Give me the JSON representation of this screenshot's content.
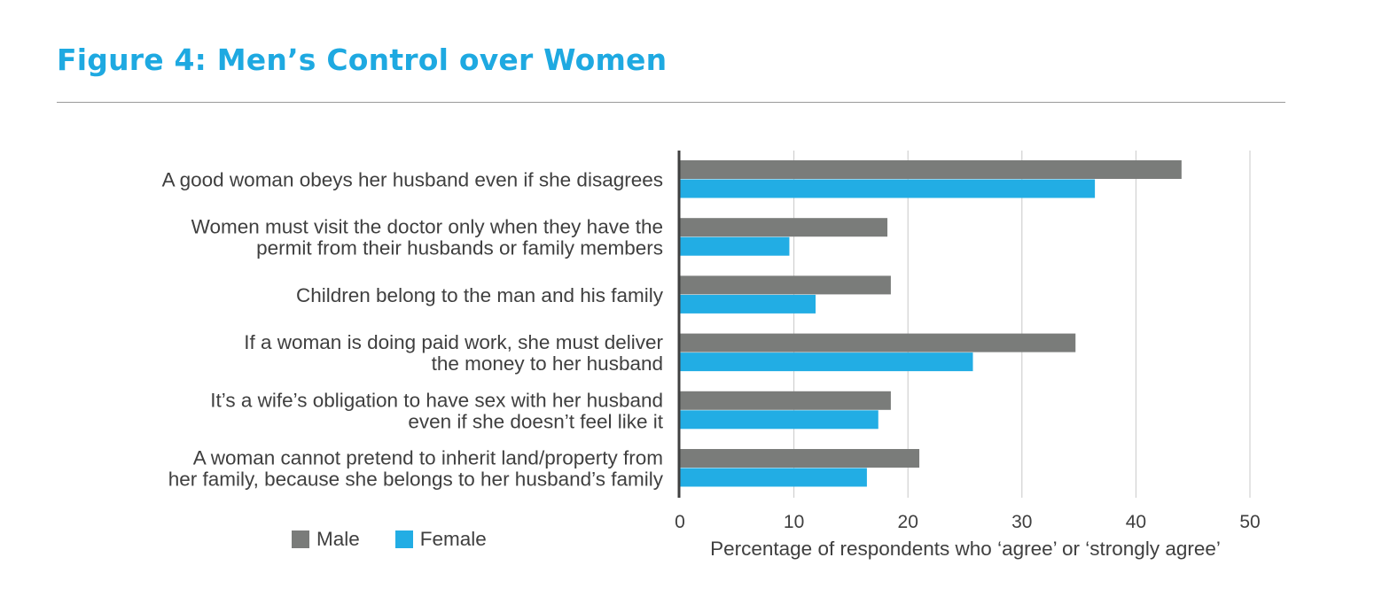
{
  "figure_title": "Figure 4: Men’s Control over Women",
  "chart_data": {
    "type": "bar",
    "orientation": "horizontal",
    "categories": [
      [
        "A good woman obeys her husband even if she disagrees"
      ],
      [
        "Women must visit the doctor only when they have the",
        "permit from their husbands or family members"
      ],
      [
        "Children belong to the man and his family"
      ],
      [
        "If a woman is doing paid work, she must deliver",
        "the money to her husband"
      ],
      [
        "It’s a wife’s obligation to have sex with her husband",
        "even if she doesn’t feel like it"
      ],
      [
        "A woman cannot pretend to inherit land/property from",
        "her family, because she belongs to her husband’s family"
      ]
    ],
    "series": [
      {
        "name": "Male",
        "color": "#7a7c7a",
        "values": [
          44,
          18.2,
          18.5,
          34.7,
          18.5,
          21
        ]
      },
      {
        "name": "Female",
        "color": "#22ade4",
        "values": [
          36.4,
          9.6,
          11.9,
          25.7,
          17.4,
          16.4
        ]
      }
    ],
    "xlim": [
      0,
      50
    ],
    "xticks": [
      0,
      10,
      20,
      30,
      40,
      50
    ],
    "xlabel": "Percentage of respondents who ‘agree’ or ‘strongly agree’",
    "grid": true,
    "legend_position": "bottom-left"
  }
}
